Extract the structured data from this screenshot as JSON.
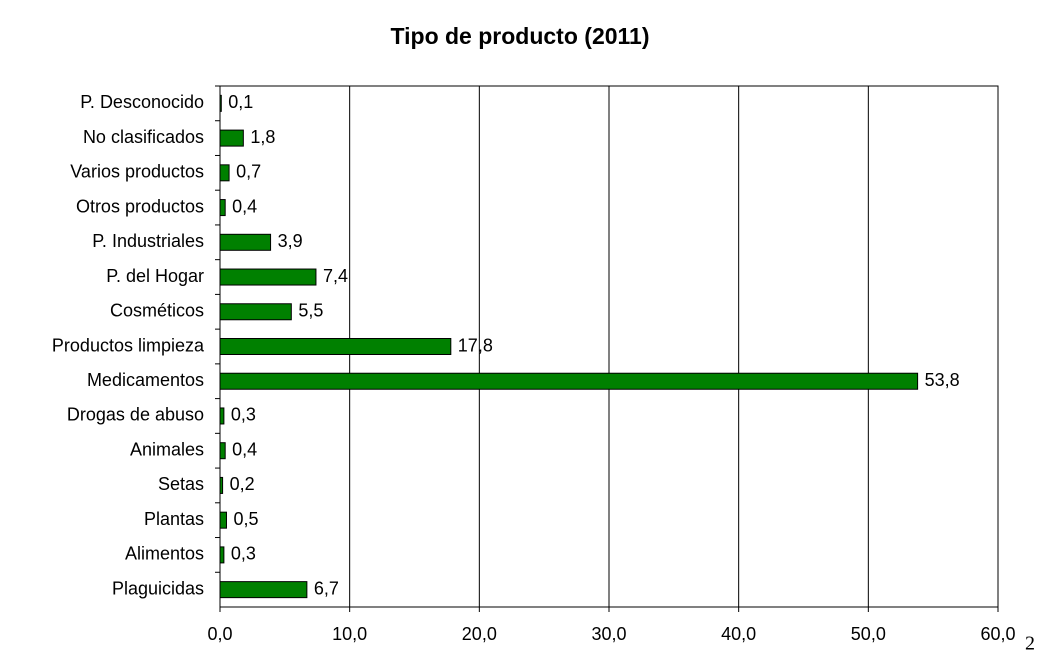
{
  "chart_data": {
    "type": "bar",
    "orientation": "horizontal",
    "title": "Tipo de producto (2011)",
    "categories": [
      "P. Desconocido",
      "No clasificados",
      "Varios productos",
      "Otros productos",
      "P. Industriales",
      "P. del Hogar",
      "Cosméticos",
      "Productos limpieza",
      "Medicamentos",
      "Drogas de abuso",
      "Animales",
      "Setas",
      "Plantas",
      "Alimentos",
      "Plaguicidas"
    ],
    "values": [
      0.1,
      1.8,
      0.7,
      0.4,
      3.9,
      7.4,
      5.5,
      17.8,
      53.8,
      0.3,
      0.4,
      0.2,
      0.5,
      0.3,
      6.7
    ],
    "value_labels": [
      "0,1",
      "1,8",
      "0,7",
      "0,4",
      "3,9",
      "7,4",
      "5,5",
      "17,8",
      "53,8",
      "0,3",
      "0,4",
      "0,2",
      "0,5",
      "0,3",
      "6,7"
    ],
    "color": "#008000",
    "xlim": [
      0,
      60
    ],
    "xticks": [
      {
        "value": 0,
        "label": "0,0"
      },
      {
        "value": 10,
        "label": "10,0"
      },
      {
        "value": 20,
        "label": "20,0"
      },
      {
        "value": 30,
        "label": "30,0"
      },
      {
        "value": 40,
        "label": "40,0"
      },
      {
        "value": 50,
        "label": "50,0"
      },
      {
        "value": 60,
        "label": "60,0"
      }
    ],
    "grid": true
  },
  "page_number": "2"
}
